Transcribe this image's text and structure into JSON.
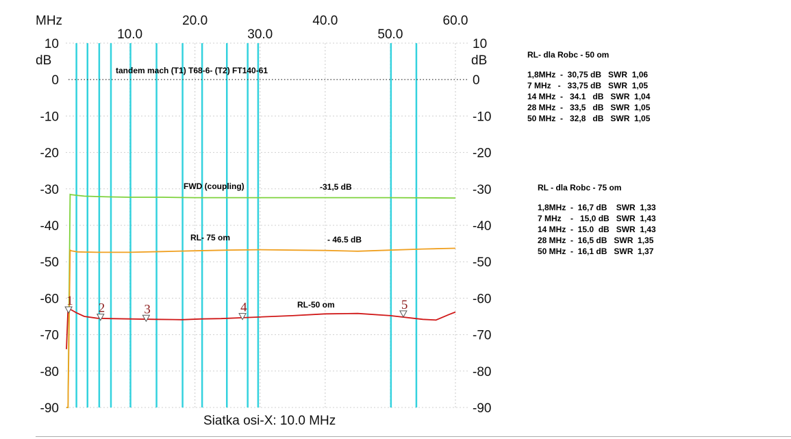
{
  "chart_data": {
    "type": "line",
    "x_unit": "MHz",
    "y_unit": "dB",
    "xlim": [
      0.1,
      60.0
    ],
    "ylim": [
      -90,
      10
    ],
    "x_ticks_top": [
      20.0,
      40.0,
      60.0
    ],
    "x_ticks_mid": [
      10.0,
      30.0,
      50.0
    ],
    "x_tick_labels_top": [
      "20.0",
      "40.0",
      "60.0"
    ],
    "x_tick_labels_mid": [
      "10.0",
      "30.0",
      "50.0"
    ],
    "y_ticks": [
      10,
      0,
      -10,
      -20,
      -30,
      -40,
      -50,
      -60,
      -70,
      -80,
      -90
    ],
    "y_tick_labels": [
      "10",
      "0",
      "-10",
      "-20",
      "-30",
      "-40",
      "-50",
      "-60",
      "-70",
      "-80",
      "-90"
    ],
    "x_grid_label": "Siatka osi-X: 10.0 MHz",
    "vertical_lines_mhz": [
      1.8,
      3.5,
      5.3,
      7.1,
      10.1,
      14.1,
      18.1,
      21.1,
      24.9,
      28.1,
      29.7,
      50.1,
      54.0
    ],
    "reference_line_db": 0,
    "annotation_top": "tandem mach (T1) T68-6-  (T2)  FT140-61",
    "series": [
      {
        "name": "FWD (coupling)",
        "value_label": "-31,5 dB",
        "color": "#7ed23c",
        "x": [
          0.1,
          0.4,
          0.8,
          1.0,
          2.0,
          3.0,
          5.0,
          7.0,
          10.0,
          15.0,
          20.0,
          25.0,
          30.0,
          40.0,
          50.0,
          60.0
        ],
        "y": [
          -90,
          -90,
          -31.5,
          -31.6,
          -31.8,
          -32.0,
          -32.1,
          -32.2,
          -32.3,
          -32.3,
          -32.4,
          -32.4,
          -32.4,
          -32.4,
          -32.4,
          -32.5
        ]
      },
      {
        "name": "RL- 75 om",
        "value_label": "- 46.5 dB",
        "color": "#f0a020",
        "x": [
          0.1,
          0.4,
          0.8,
          1.0,
          2.0,
          5.0,
          10.0,
          15.0,
          20.0,
          25.0,
          30.0,
          35.0,
          40.0,
          45.0,
          50.0,
          55.0,
          60.0
        ],
        "y": [
          -90,
          -90,
          -46.8,
          -47.0,
          -47.3,
          -47.4,
          -47.4,
          -47.2,
          -47.0,
          -46.8,
          -46.7,
          -46.8,
          -46.9,
          -47.1,
          -46.8,
          -46.5,
          -46.3
        ]
      },
      {
        "name": "RL-50 om",
        "value_label": "",
        "color": "#d01818",
        "x": [
          0.1,
          0.4,
          0.6,
          1.0,
          1.8,
          3.0,
          5.0,
          7.0,
          10.0,
          14.0,
          18.0,
          21.0,
          24.0,
          28.0,
          35.0,
          40.0,
          45.0,
          50.0,
          55.0,
          57.0,
          59.0,
          60.0
        ],
        "y": [
          -74.0,
          -63.0,
          -63.0,
          -63.2,
          -64.0,
          -65.0,
          -65.5,
          -65.6,
          -65.7,
          -65.8,
          -65.9,
          -65.7,
          -65.6,
          -65.3,
          -64.8,
          -64.3,
          -64.2,
          -64.8,
          -65.8,
          -66.0,
          -64.5,
          -63.8
        ]
      }
    ],
    "markers": [
      {
        "label": "1",
        "x": 0.5,
        "y": -63.5
      },
      {
        "label": "2",
        "x": 5.5,
        "y": -65.5
      },
      {
        "label": "3",
        "x": 12.5,
        "y": -65.8
      },
      {
        "label": "4",
        "x": 27.3,
        "y": -65.3
      },
      {
        "label": "5",
        "x": 52.0,
        "y": -64.6
      }
    ]
  },
  "panel_50": {
    "title": "RL-  dla Robc - 50 om",
    "rows": [
      "1,8MHz  -  30,75 dB   SWR  1,06",
      "7 MHz   -   33,75 dB   SWR  1,05",
      "14 MHz  -   34.1   dB   SWR  1,04",
      "28 MHz  -   33,5   dB   SWR  1,05",
      "50 MHz  -   32,8   dB   SWR  1,05"
    ]
  },
  "panel_75": {
    "title": "RL   - dla Robc  - 75 om",
    "rows": [
      "1,8MHz  -  16,7 dB    SWR  1,33",
      "7 MHz    -   15,0 dB   SWR  1,43",
      "14 MHz  -  15.0  dB   SWR  1,43",
      "28 MHz  -  16,5 dB   SWR  1,35",
      "50 MHz  -  16,1 dB   SWR  1,37"
    ]
  }
}
